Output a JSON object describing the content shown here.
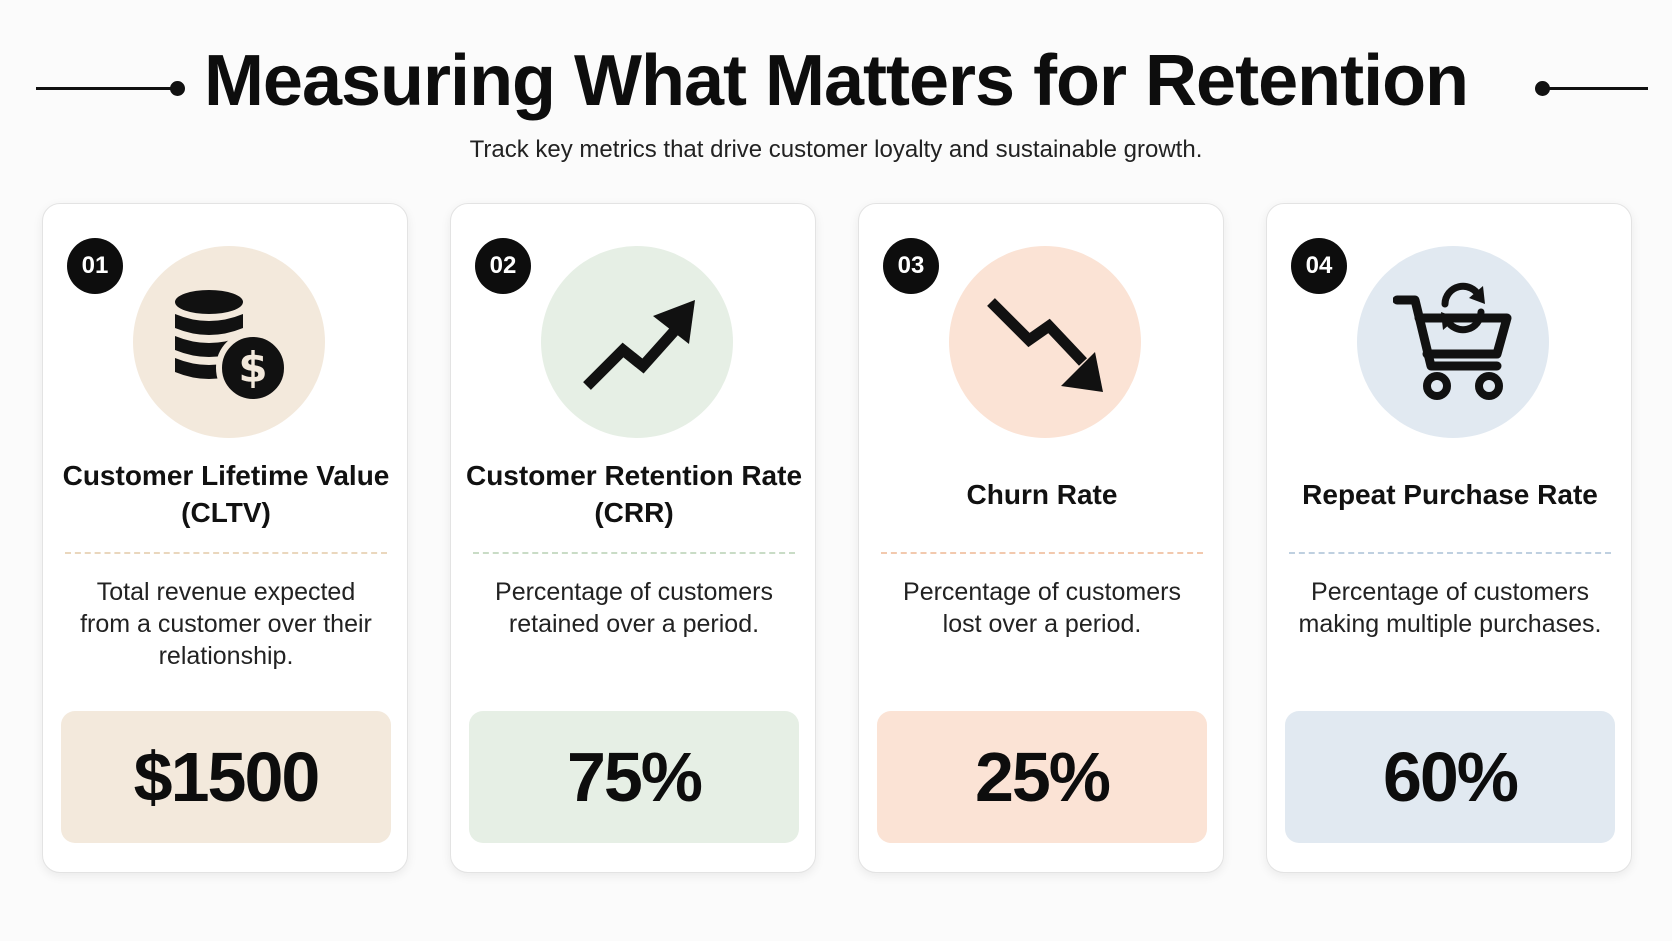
{
  "header": {
    "title": "Measuring What Matters for Retention",
    "subtitle": "Track key metrics that drive customer loyalty and sustainable growth."
  },
  "cards": [
    {
      "number": "01",
      "icon": "coins-dollar-icon",
      "title": "Customer Lifetime Value (CLTV)",
      "description": "Total revenue expected from a customer over their relationship.",
      "value": "$1500",
      "accent_color": "#f3e9dc",
      "divider_color": "#ead7bd"
    },
    {
      "number": "02",
      "icon": "trend-up-arrow-icon",
      "title": "Customer Retention Rate (CRR)",
      "description": "Percentage of customers retained over a period.",
      "value": "75%",
      "accent_color": "#e6efe5",
      "divider_color": "#c9dcc6"
    },
    {
      "number": "03",
      "icon": "trend-down-arrow-icon",
      "title": "Churn Rate",
      "description": "Percentage of customers lost over a period.",
      "value": "25%",
      "accent_color": "#fbe3d5",
      "divider_color": "#f2c9ae"
    },
    {
      "number": "04",
      "icon": "cart-repeat-icon",
      "title": "Repeat Purchase Rate",
      "description": "Percentage of customers making multiple purchases.",
      "value": "60%",
      "accent_color": "#e1e9f1",
      "divider_color": "#bfd0e0"
    }
  ]
}
